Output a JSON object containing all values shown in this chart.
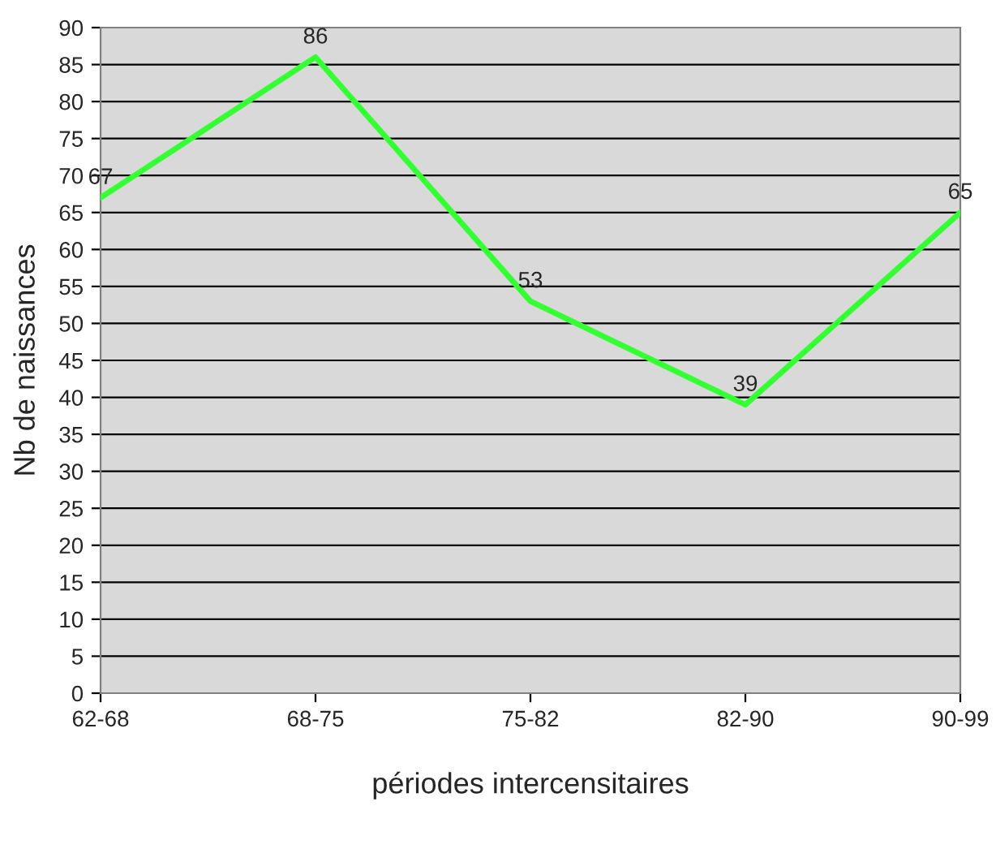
{
  "chart_data": {
    "type": "line",
    "xlabel": "périodes intercensitaires",
    "ylabel": "Nb de naissances",
    "categories": [
      "62-68",
      "68-75",
      "75-82",
      "82-90",
      "90-99"
    ],
    "series": [
      {
        "color": "#33ff33",
        "values": [
          67,
          86,
          53,
          39,
          65
        ]
      }
    ],
    "ylim": [
      0,
      90
    ],
    "yticks": [
      0,
      5,
      10,
      15,
      20,
      25,
      30,
      35,
      40,
      45,
      50,
      55,
      60,
      65,
      70,
      75,
      80,
      85,
      90
    ],
    "grid": "y",
    "data_labels": true,
    "marker": "none",
    "line_style": "solid"
  }
}
